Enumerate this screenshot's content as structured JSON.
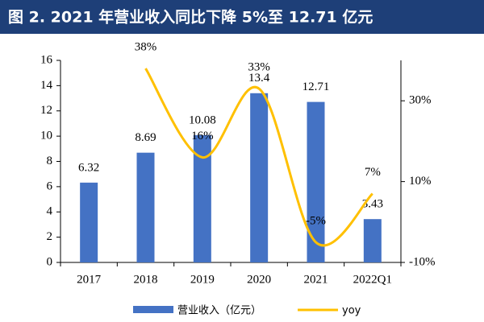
{
  "chart_data": {
    "type": "bar_line",
    "title": "图 2. 2021 年营业收入同比下降 5%至 12.71 亿元",
    "categories": [
      "2017",
      "2018",
      "2019",
      "2020",
      "2021",
      "2022Q1"
    ],
    "series": [
      {
        "name": "营业收入（亿元）",
        "type": "bar",
        "color": "#4472c4",
        "values": [
          6.32,
          8.69,
          10.08,
          13.4,
          12.71,
          3.43
        ]
      },
      {
        "name": "yoy",
        "type": "line",
        "axis": "y2",
        "color": "#ffc000",
        "values": [
          null,
          38,
          16,
          33,
          -5,
          7
        ],
        "value_labels": [
          null,
          "38%",
          "16%",
          "33%",
          "-5%",
          "7%"
        ]
      }
    ],
    "ylim": [
      0,
      16
    ],
    "yticks": [
      0,
      2,
      4,
      6,
      8,
      10,
      12,
      14,
      16
    ],
    "y2lim": [
      -10,
      40
    ],
    "y2ticks": [
      {
        "value": -10,
        "label": "-10%"
      },
      {
        "value": 10,
        "label": "10%"
      },
      {
        "value": 30,
        "label": "30%"
      }
    ],
    "grid": false,
    "legend": "bottom"
  }
}
